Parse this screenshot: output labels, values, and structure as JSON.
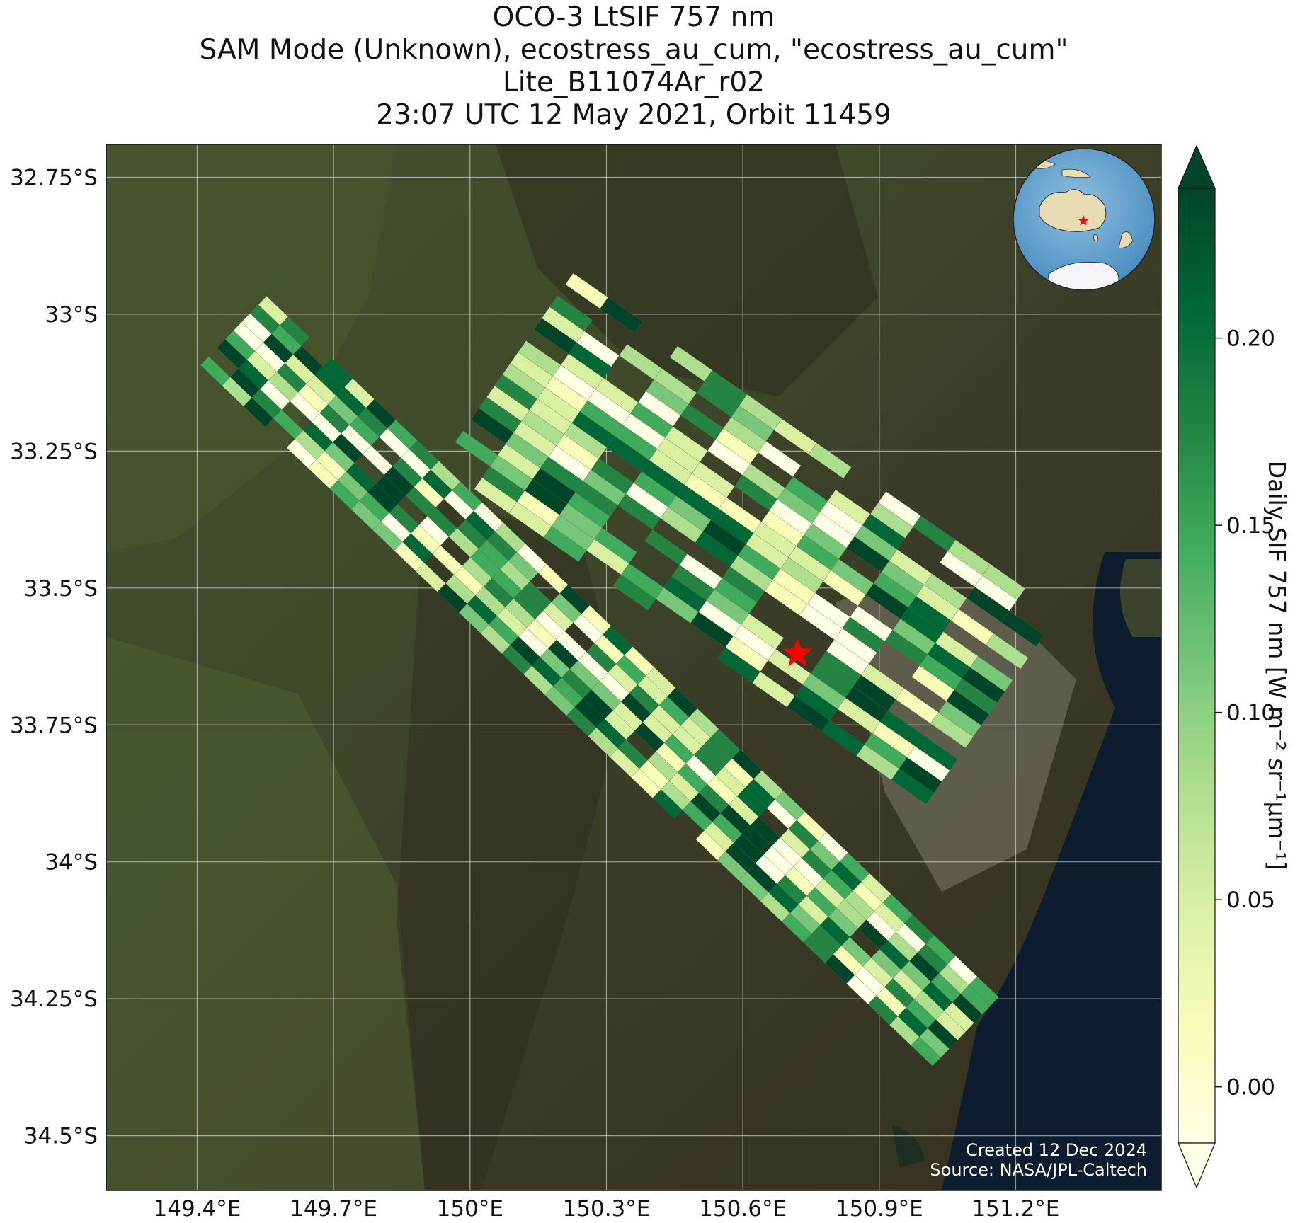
{
  "title": {
    "line1": "OCO-3 LtSIF 757 nm",
    "line2": "SAM Mode (Unknown), ecostress_au_cum, \"ecostress_au_cum\"",
    "line3": "Lite_B11074Ar_r02",
    "line4": "23:07 UTC 12 May 2021, Orbit 11459"
  },
  "map": {
    "lon_range": [
      149.2,
      151.52
    ],
    "lat_range": [
      -34.6,
      -32.69
    ],
    "lat_ticks": [
      {
        "value": -32.75,
        "label": "32.75°S"
      },
      {
        "value": -33.0,
        "label": "33°S"
      },
      {
        "value": -33.25,
        "label": "33.25°S"
      },
      {
        "value": -33.5,
        "label": "33.5°S"
      },
      {
        "value": -33.75,
        "label": "33.75°S"
      },
      {
        "value": -34.0,
        "label": "34°S"
      },
      {
        "value": -34.25,
        "label": "34.25°S"
      },
      {
        "value": -34.5,
        "label": "34.5°S"
      }
    ],
    "lon_ticks": [
      {
        "value": 149.4,
        "label": "149.4°E"
      },
      {
        "value": 149.7,
        "label": "149.7°E"
      },
      {
        "value": 150.0,
        "label": "150°E"
      },
      {
        "value": 150.3,
        "label": "150.3°E"
      },
      {
        "value": 150.6,
        "label": "150.6°E"
      },
      {
        "value": 150.9,
        "label": "150.9°E"
      },
      {
        "value": 151.2,
        "label": "151.2°E"
      }
    ],
    "target": {
      "lon": 150.72,
      "lat": -33.62,
      "marker": "red-star"
    },
    "swaths": [
      {
        "start": [
          149.48,
          -33.03
        ],
        "end": [
          151.09,
          -34.31
        ]
      },
      {
        "start": [
          150.08,
          -33.1
        ],
        "end": [
          151.15,
          -33.72
        ]
      }
    ],
    "grid": true,
    "basemap": "satellite imagery"
  },
  "inset": {
    "type": "globe",
    "marker": "red-star",
    "highlight": "Australia"
  },
  "colorbar": {
    "label": "Daily SIF 757 nm [W m⁻² sr⁻¹μm⁻¹]",
    "min": -0.015,
    "max": 0.24,
    "ticks": [
      {
        "value": 0.0,
        "label": "0.00"
      },
      {
        "value": 0.05,
        "label": "0.05"
      },
      {
        "value": 0.1,
        "label": "0.10"
      },
      {
        "value": 0.15,
        "label": "0.15"
      },
      {
        "value": 0.2,
        "label": "0.20"
      }
    ],
    "colormap": [
      "#ffffe5",
      "#f7fcb9",
      "#d9f0a3",
      "#addd8e",
      "#78c679",
      "#41ab5d",
      "#238443",
      "#006837",
      "#004529"
    ],
    "extend": "both"
  },
  "footer": {
    "created": "Created 12 Dec 2024",
    "source": "Source: NASA/JPL-Caltech"
  }
}
